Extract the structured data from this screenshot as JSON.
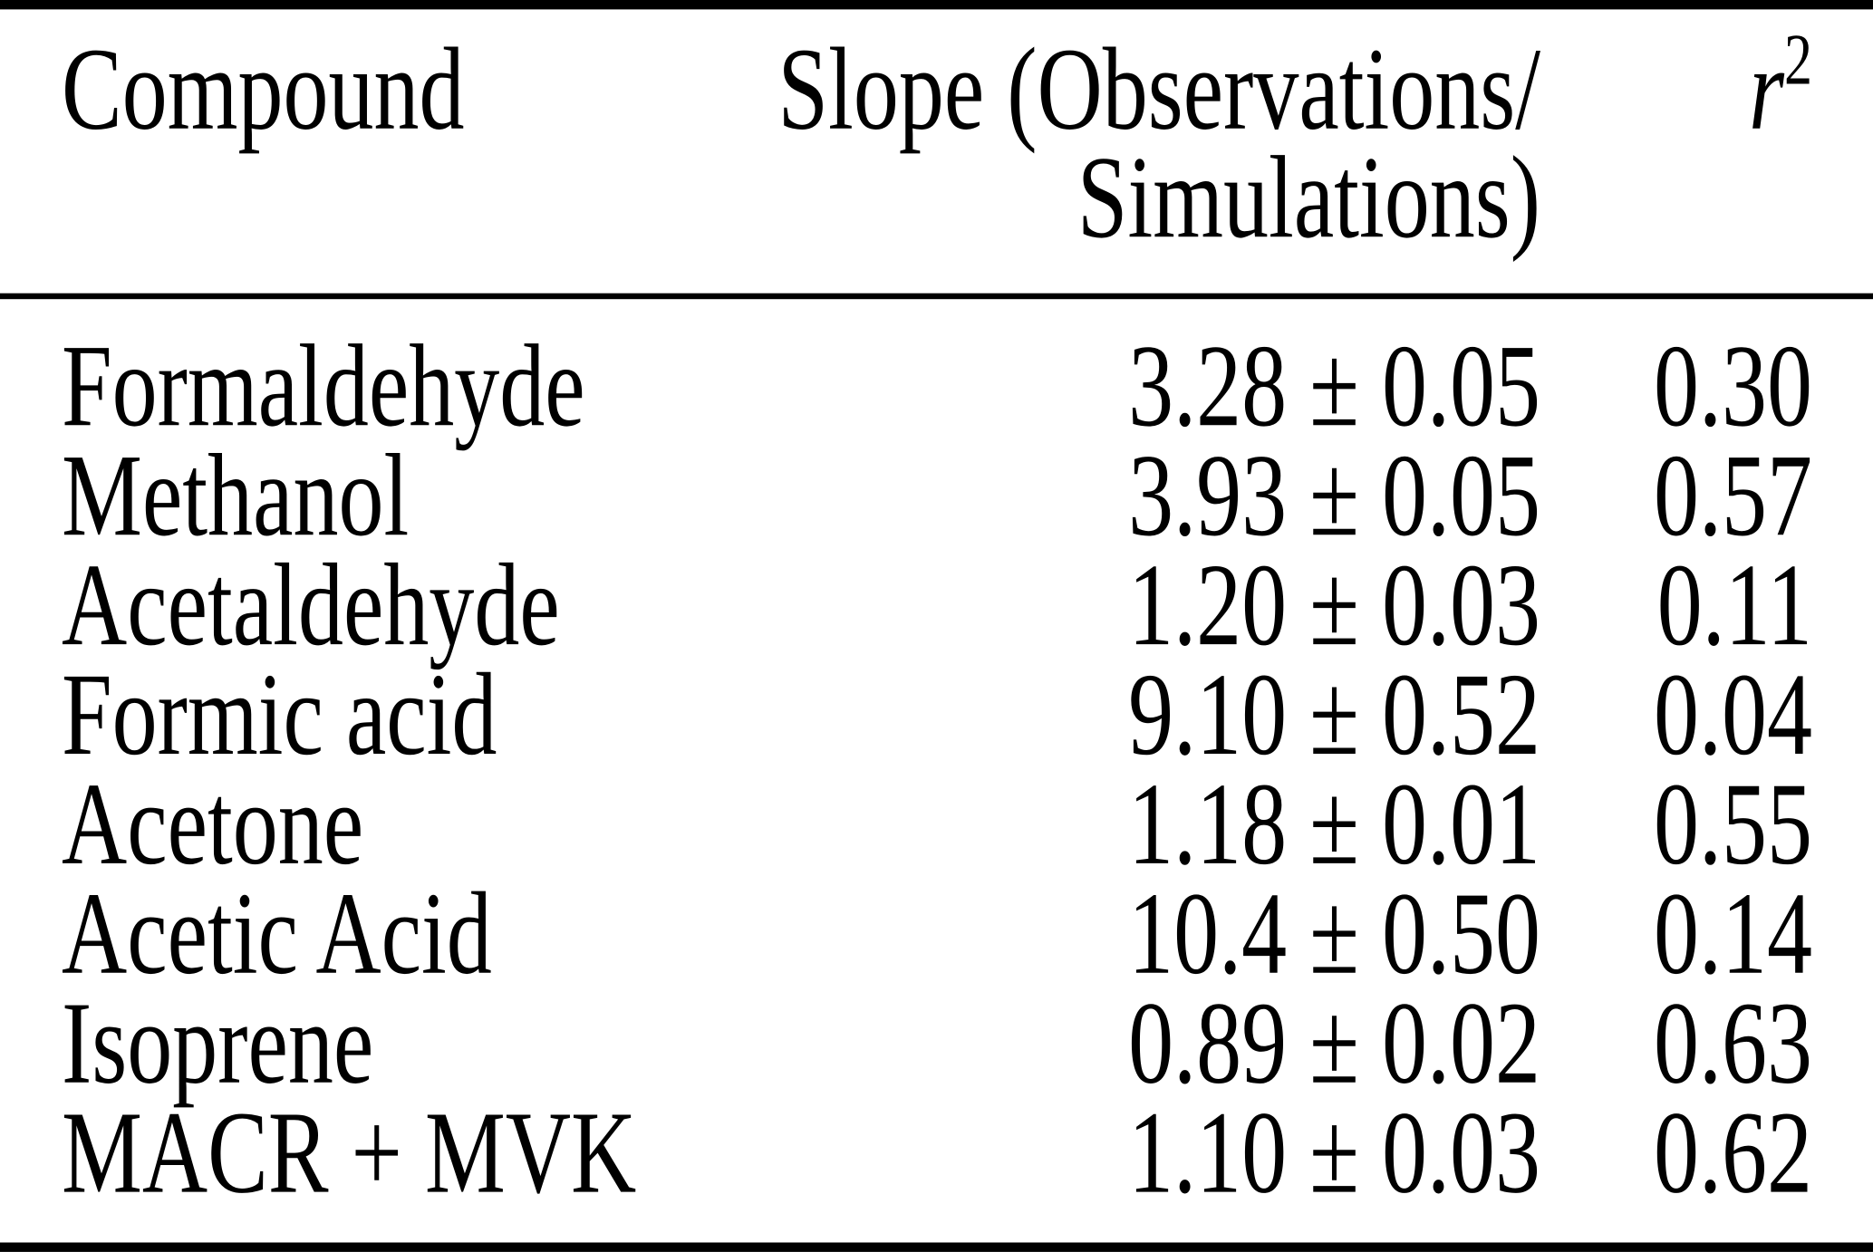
{
  "table": {
    "header": {
      "compound": "Compound",
      "slope_line1": "Slope (Observations/",
      "slope_line2": "Simulations)",
      "r2_base": "r",
      "r2_sup": "2"
    },
    "rows": [
      {
        "compound": "Formaldehyde",
        "slope": "3.28 ± 0.05",
        "r2": "0.30"
      },
      {
        "compound": "Methanol",
        "slope": "3.93 ± 0.05",
        "r2": "0.57"
      },
      {
        "compound": "Acetaldehyde",
        "slope": "1.20 ± 0.03",
        "r2": "0.11"
      },
      {
        "compound": "Formic acid",
        "slope": "9.10 ± 0.52",
        "r2": "0.04"
      },
      {
        "compound": "Acetone",
        "slope": "1.18 ± 0.01",
        "r2": "0.55"
      },
      {
        "compound": "Acetic Acid",
        "slope": "10.4 ± 0.50",
        "r2": "0.14"
      },
      {
        "compound": "Isoprene",
        "slope": "0.89 ± 0.02",
        "r2": "0.63"
      },
      {
        "compound": "MACR + MVK",
        "slope": "1.10 ± 0.03",
        "r2": "0.62"
      }
    ]
  },
  "colors": {
    "text": "#000000",
    "background": "#ffffff",
    "rule": "#000000"
  },
  "chart_data": {
    "type": "table",
    "columns": [
      "Compound",
      "Slope (Observations/Simulations)",
      "r2"
    ],
    "rows": [
      [
        "Formaldehyde",
        "3.28 ± 0.05",
        0.3
      ],
      [
        "Methanol",
        "3.93 ± 0.05",
        0.57
      ],
      [
        "Acetaldehyde",
        "1.20 ± 0.03",
        0.11
      ],
      [
        "Formic acid",
        "9.10 ± 0.52",
        0.04
      ],
      [
        "Acetone",
        "1.18 ± 0.01",
        0.55
      ],
      [
        "Acetic Acid",
        "10.4 ± 0.50",
        0.14
      ],
      [
        "Isoprene",
        "0.89 ± 0.02",
        0.63
      ],
      [
        "MACR + MVK",
        "1.10 ± 0.03",
        0.62
      ]
    ]
  }
}
